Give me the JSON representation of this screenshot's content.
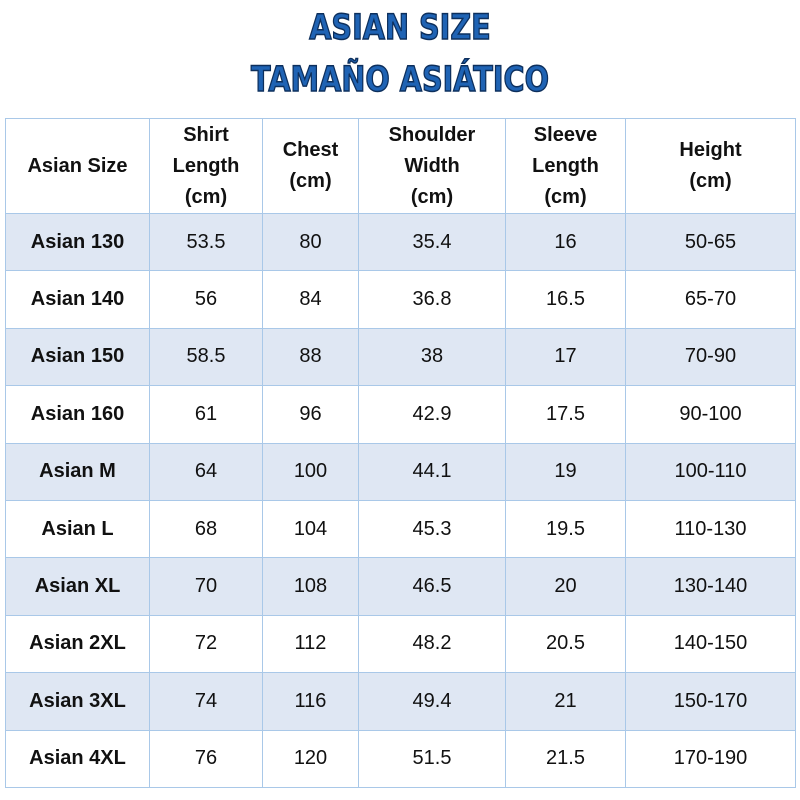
{
  "header": {
    "title": [
      "ASIAN SIZE",
      "TAMAÑO ASIÁTICO"
    ]
  },
  "table": {
    "columns": [
      [
        "Asian Size"
      ],
      [
        "Shirt",
        "Length",
        "(cm)"
      ],
      [
        "Chest",
        "(cm)"
      ],
      [
        "Shoulder",
        "Width",
        "(cm)"
      ],
      [
        "Sleeve",
        "Length",
        "(cm)"
      ],
      [
        "Height",
        "(cm)"
      ]
    ],
    "rows": [
      [
        "Asian 130",
        "53.5",
        "80",
        "35.4",
        "16",
        "50-65"
      ],
      [
        "Asian 140",
        "56",
        "84",
        "36.8",
        "16.5",
        "65-70"
      ],
      [
        "Asian 150",
        "58.5",
        "88",
        "38",
        "17",
        "70-90"
      ],
      [
        "Asian 160",
        "61",
        "96",
        "42.9",
        "17.5",
        "90-100"
      ],
      [
        "Asian M",
        "64",
        "100",
        "44.1",
        "19",
        "100-110"
      ],
      [
        "Asian L",
        "68",
        "104",
        "45.3",
        "19.5",
        "110-130"
      ],
      [
        "Asian XL",
        "70",
        "108",
        "46.5",
        "20",
        "130-140"
      ],
      [
        "Asian 2XL",
        "72",
        "112",
        "48.2",
        "20.5",
        "140-150"
      ],
      [
        "Asian 3XL",
        "74",
        "116",
        "49.4",
        "21",
        "150-170"
      ],
      [
        "Asian 4XL",
        "76",
        "120",
        "51.5",
        "21.5",
        "170-190"
      ]
    ]
  }
}
